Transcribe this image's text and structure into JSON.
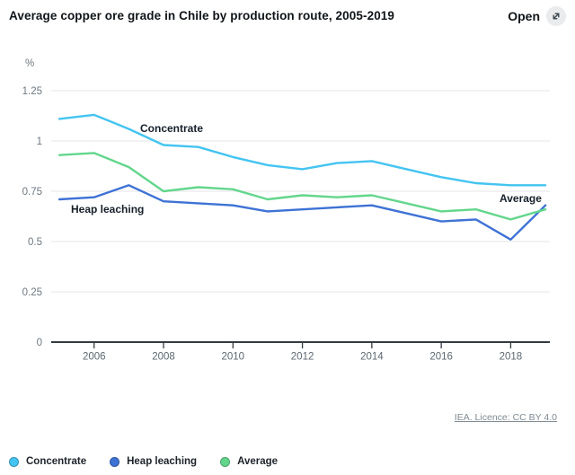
{
  "header": {
    "title": "Average copper ore grade in Chile by production route, 2005-2019",
    "open_button": {
      "label": "Open",
      "icon": "expand-diagonal-arrow-icon"
    }
  },
  "chart_data": {
    "type": "line",
    "title": "Average copper ore grade in Chile by production route, 2005-2019",
    "ylabel": "%",
    "xlabel": "",
    "x": [
      2005,
      2006,
      2007,
      2008,
      2009,
      2010,
      2011,
      2012,
      2013,
      2014,
      2015,
      2016,
      2017,
      2018,
      2019
    ],
    "series": [
      {
        "name": "Concentrate",
        "color": "#44c4f1",
        "values": [
          1.11,
          1.13,
          1.06,
          0.98,
          0.97,
          0.92,
          0.88,
          0.86,
          0.89,
          0.9,
          0.86,
          0.82,
          0.79,
          0.78,
          0.78
        ]
      },
      {
        "name": "Heap leaching",
        "color": "#3e72d5",
        "values": [
          0.71,
          0.72,
          0.78,
          0.7,
          0.69,
          0.68,
          0.65,
          0.66,
          0.67,
          0.68,
          0.64,
          0.6,
          0.61,
          0.51,
          0.68
        ]
      },
      {
        "name": "Average",
        "color": "#63d68c",
        "values": [
          0.93,
          0.94,
          0.87,
          0.75,
          0.77,
          0.76,
          0.71,
          0.73,
          0.72,
          0.73,
          0.69,
          0.65,
          0.66,
          0.61,
          0.66
        ]
      }
    ],
    "ylim": [
      0,
      1.25
    ],
    "yticks": [
      0,
      0.25,
      0.5,
      0.75,
      1,
      1.25
    ],
    "ytick_labels": [
      "0",
      "0.25",
      "0.5",
      "0.75",
      "1",
      "1.25"
    ],
    "xticks": [
      2006,
      2008,
      2010,
      2012,
      2014,
      2016,
      2018
    ],
    "xtick_labels": [
      "2006",
      "2008",
      "2010",
      "2012",
      "2014",
      "2016",
      "2018"
    ],
    "grid": "horizontal-light",
    "legend_position": "bottom-left",
    "inline_series_labels": [
      "Concentrate",
      "Heap leaching",
      "Average"
    ]
  },
  "footer": {
    "licence_link": "IEA. Licence: CC BY 4.0"
  },
  "colors": {
    "axis": "#333b41",
    "grid": "#e4e6e8",
    "text_muted": "#6e7880",
    "xtick_text": "#5c6870",
    "open_icon_bg": "#e9ebed"
  }
}
